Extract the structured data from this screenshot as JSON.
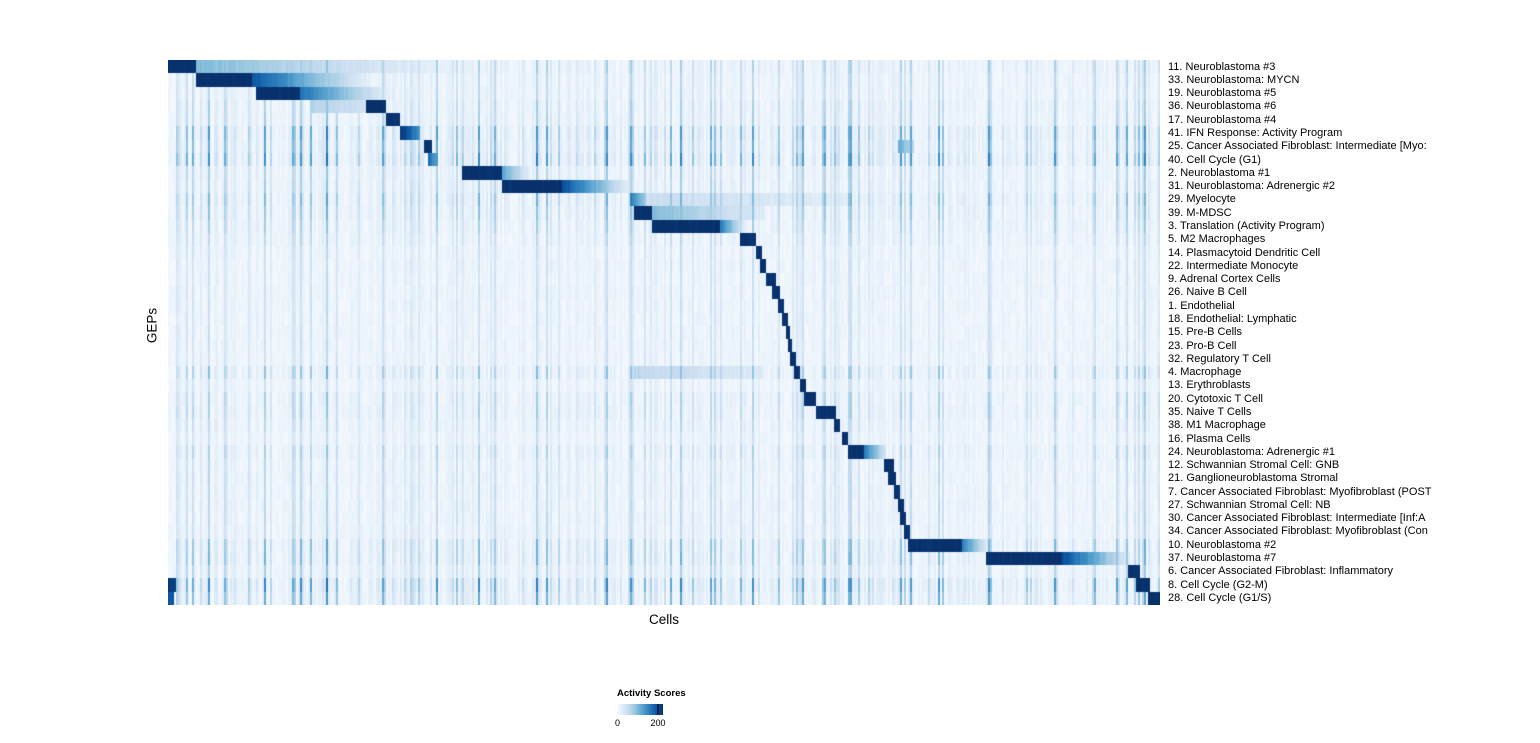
{
  "figure": {
    "x_axis_label": "Cells",
    "y_axis_label": "GEPs"
  },
  "legend": {
    "title": "Activity Scores",
    "tick_min": "0",
    "tick_max": "200"
  },
  "chart_data": {
    "type": "heatmap",
    "title": "",
    "xlabel": "Cells",
    "ylabel": "GEPs",
    "legend_title": "Activity Scores",
    "value_range": [
      0,
      200
    ],
    "colormap": "Blues",
    "colormap_stops": [
      "#f7fbff",
      "#deebf7",
      "#c6dbef",
      "#9ecae1",
      "#6baed6",
      "#4292c6",
      "#2171b5",
      "#08519c",
      "#08306b"
    ],
    "x_axis": "individual cells ordered by GEP assignment (column positions given as fractions 0-1)",
    "rows": [
      {
        "label": "11. Neuroblastoma #3",
        "noise": 0.5,
        "blocks": [
          [
            0.0,
            0.028,
            200,
            200
          ],
          [
            0.028,
            0.3,
            90,
            8
          ]
        ]
      },
      {
        "label": "33. Neuroblastoma: MYCN",
        "noise": 0.4,
        "blocks": [
          [
            0.028,
            0.085,
            200,
            200
          ],
          [
            0.085,
            0.205,
            170,
            15
          ]
        ]
      },
      {
        "label": "19. Neuroblastoma #5",
        "noise": 0.4,
        "blocks": [
          [
            0.088,
            0.133,
            200,
            200
          ],
          [
            0.133,
            0.225,
            150,
            15
          ]
        ]
      },
      {
        "label": "36. Neuroblastoma #6",
        "noise": 0.5,
        "blocks": [
          [
            0.146,
            0.2,
            60,
            40
          ],
          [
            0.2,
            0.22,
            200,
            200
          ]
        ]
      },
      {
        "label": "17. Neuroblastoma #4",
        "noise": 0.5,
        "blocks": [
          [
            0.219,
            0.233,
            200,
            200
          ]
        ]
      },
      {
        "label": "41. IFN Response: Activity Program",
        "noise": 0.9,
        "blocks": [
          [
            0.234,
            0.254,
            200,
            120
          ]
        ]
      },
      {
        "label": "25. Cancer Associated Fibroblast: Intermediate [Myo:",
        "noise": 0.8,
        "blocks": [
          [
            0.258,
            0.266,
            200,
            200
          ],
          [
            0.735,
            0.752,
            110,
            50
          ]
        ]
      },
      {
        "label": "40. Cell Cycle (G1)",
        "noise": 1.0,
        "blocks": [
          [
            0.263,
            0.27,
            160,
            110
          ]
        ]
      },
      {
        "label": "2. Neuroblastoma #1",
        "noise": 0.5,
        "blocks": [
          [
            0.297,
            0.336,
            200,
            200
          ],
          [
            0.336,
            0.365,
            110,
            20
          ]
        ]
      },
      {
        "label": "31. Neuroblastoma: Adrenergic #2",
        "noise": 0.5,
        "blocks": [
          [
            0.336,
            0.397,
            200,
            200
          ],
          [
            0.397,
            0.467,
            180,
            15
          ]
        ]
      },
      {
        "label": "29. Myelocyte",
        "noise": 0.7,
        "blocks": [
          [
            0.465,
            0.482,
            150,
            70
          ],
          [
            0.482,
            0.69,
            45,
            20
          ]
        ]
      },
      {
        "label": "39. M-MDSC",
        "noise": 0.6,
        "blocks": [
          [
            0.47,
            0.487,
            200,
            200
          ],
          [
            0.487,
            0.6,
            90,
            25
          ]
        ]
      },
      {
        "label": "3. Translation (Activity Program)",
        "noise": 0.5,
        "blocks": [
          [
            0.487,
            0.557,
            200,
            200
          ],
          [
            0.557,
            0.58,
            140,
            30
          ]
        ]
      },
      {
        "label": "5. M2 Macrophages",
        "noise": 0.4,
        "blocks": [
          [
            0.577,
            0.592,
            200,
            200
          ]
        ]
      },
      {
        "label": "14. Plasmacytoid Dendritic Cell",
        "noise": 0.3,
        "blocks": [
          [
            0.592,
            0.599,
            200,
            200
          ]
        ]
      },
      {
        "label": "22. Intermediate Monocyte",
        "noise": 0.3,
        "blocks": [
          [
            0.597,
            0.603,
            200,
            200
          ]
        ]
      },
      {
        "label": "9. Adrenal Cortex Cells",
        "noise": 0.3,
        "blocks": [
          [
            0.602,
            0.612,
            200,
            200
          ]
        ]
      },
      {
        "label": "26. Naive B Cell",
        "noise": 0.3,
        "blocks": [
          [
            0.608,
            0.616,
            200,
            200
          ]
        ]
      },
      {
        "label": "1. Endothelial",
        "noise": 0.3,
        "blocks": [
          [
            0.615,
            0.621,
            200,
            200
          ]
        ]
      },
      {
        "label": "18. Endothelial: Lymphatic",
        "noise": 0.3,
        "blocks": [
          [
            0.619,
            0.624,
            200,
            200
          ]
        ]
      },
      {
        "label": "15. Pre-B Cells",
        "noise": 0.3,
        "blocks": [
          [
            0.622,
            0.627,
            200,
            200
          ]
        ]
      },
      {
        "label": "23. Pro-B Cell",
        "noise": 0.3,
        "blocks": [
          [
            0.625,
            0.63,
            200,
            200
          ]
        ]
      },
      {
        "label": "32. Regulatory T Cell",
        "noise": 0.3,
        "blocks": [
          [
            0.628,
            0.633,
            200,
            200
          ]
        ]
      },
      {
        "label": "4. Macrophage",
        "noise": 0.6,
        "blocks": [
          [
            0.47,
            0.6,
            55,
            25
          ],
          [
            0.632,
            0.638,
            200,
            200
          ]
        ]
      },
      {
        "label": "13. Erythroblasts",
        "noise": 0.3,
        "blocks": [
          [
            0.637,
            0.643,
            200,
            200
          ]
        ]
      },
      {
        "label": "20. Cytotoxic T Cell",
        "noise": 0.5,
        "blocks": [
          [
            0.642,
            0.653,
            200,
            200
          ]
        ]
      },
      {
        "label": "35. Naive T Cells",
        "noise": 0.5,
        "blocks": [
          [
            0.653,
            0.673,
            200,
            200
          ]
        ]
      },
      {
        "label": "38. M1 Macrophage",
        "noise": 0.4,
        "blocks": [
          [
            0.672,
            0.678,
            200,
            200
          ]
        ]
      },
      {
        "label": "16. Plasma Cells",
        "noise": 0.3,
        "blocks": [
          [
            0.68,
            0.686,
            200,
            200
          ]
        ]
      },
      {
        "label": "24. Neuroblastoma: Adrenergic #1",
        "noise": 0.5,
        "blocks": [
          [
            0.686,
            0.701,
            200,
            200
          ],
          [
            0.701,
            0.723,
            150,
            35
          ]
        ]
      },
      {
        "label": "12. Schwannian Stromal Cell: GNB",
        "noise": 0.4,
        "blocks": [
          [
            0.722,
            0.731,
            200,
            200
          ]
        ]
      },
      {
        "label": "21. Ganglioneuroblastoma Stromal",
        "noise": 0.4,
        "blocks": [
          [
            0.726,
            0.733,
            200,
            200
          ]
        ]
      },
      {
        "label": "7. Cancer Associated Fibroblast: Myofibroblast (POST",
        "noise": 0.4,
        "blocks": [
          [
            0.731,
            0.737,
            200,
            200
          ]
        ]
      },
      {
        "label": "27. Schwannian Stromal Cell: NB",
        "noise": 0.4,
        "blocks": [
          [
            0.735,
            0.741,
            200,
            200
          ]
        ]
      },
      {
        "label": "30. Cancer Associated Fibroblast: Intermediate [Inf:A",
        "noise": 0.4,
        "blocks": [
          [
            0.738,
            0.744,
            200,
            200
          ]
        ]
      },
      {
        "label": "34. Cancer Associated Fibroblast: Myofibroblast (Con",
        "noise": 0.4,
        "blocks": [
          [
            0.741,
            0.748,
            200,
            200
          ]
        ]
      },
      {
        "label": "10. Neuroblastoma #2",
        "noise": 0.7,
        "blocks": [
          [
            0.746,
            0.801,
            200,
            200
          ],
          [
            0.801,
            0.824,
            140,
            30
          ]
        ]
      },
      {
        "label": "37. Neuroblastoma #7",
        "noise": 0.7,
        "blocks": [
          [
            0.824,
            0.901,
            200,
            200
          ],
          [
            0.901,
            0.97,
            180,
            25
          ]
        ]
      },
      {
        "label": "6. Cancer Associated Fibroblast: Inflammatory",
        "noise": 0.5,
        "blocks": [
          [
            0.968,
            0.98,
            200,
            200
          ]
        ]
      },
      {
        "label": "8. Cell Cycle (G2-M)",
        "noise": 1.0,
        "blocks": [
          [
            0.0,
            0.008,
            190,
            190
          ],
          [
            0.975,
            0.989,
            200,
            200
          ]
        ]
      },
      {
        "label": "28. Cell Cycle (G1/S)",
        "noise": 0.8,
        "blocks": [
          [
            0.0,
            0.006,
            170,
            170
          ],
          [
            0.988,
            1.0,
            200,
            200
          ]
        ]
      }
    ]
  }
}
